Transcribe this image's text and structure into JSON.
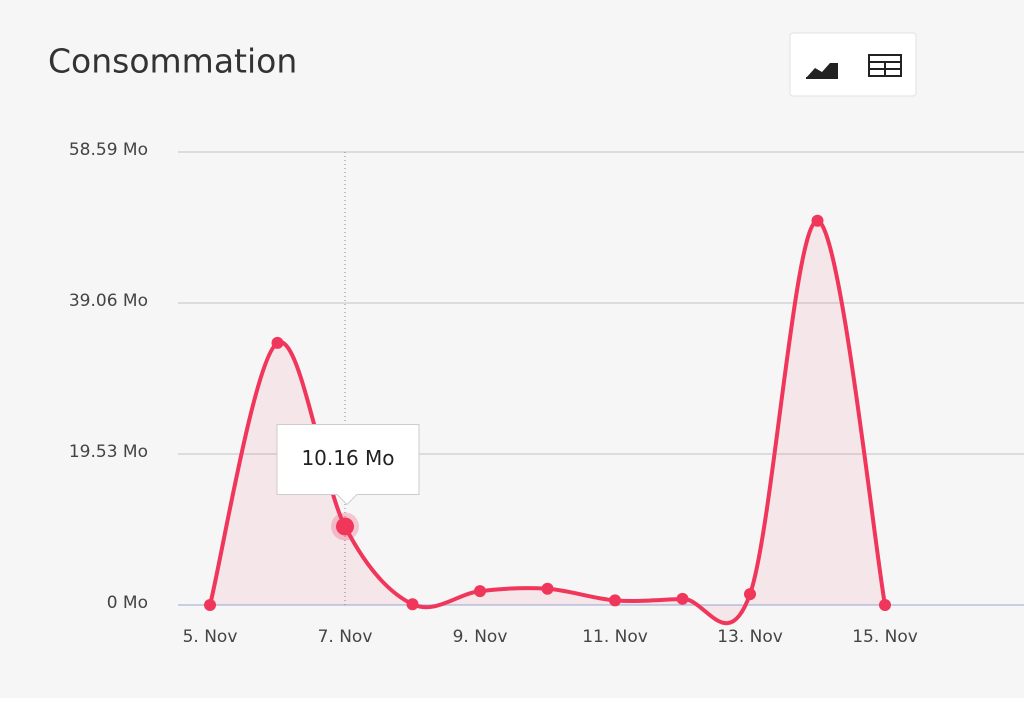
{
  "chart_data": {
    "type": "area",
    "title": "Consommation",
    "categories": [
      "5. Nov",
      null,
      "7. Nov",
      null,
      "9. Nov",
      null,
      "11. Nov",
      null,
      "13. Nov",
      null,
      "15. Nov"
    ],
    "values": [
      0,
      33.9,
      10.16,
      0.1,
      1.8,
      2.1,
      0.6,
      0.8,
      1.4,
      49.7,
      0
    ],
    "value_labels": [
      null,
      null,
      "10.16 Mo",
      null,
      null,
      null,
      null,
      null,
      null,
      null,
      null
    ],
    "color": "#f0365a",
    "ylim": [
      0,
      58.59
    ],
    "yticks": [
      {
        "value": 0,
        "label": "0 Mo"
      },
      {
        "value": 19.53,
        "label": "19.53 Mo"
      },
      {
        "value": 39.06,
        "label": "39.06 Mo"
      },
      {
        "value": 58.59,
        "label": "58.59 Mo"
      }
    ],
    "grid": true
  }
}
